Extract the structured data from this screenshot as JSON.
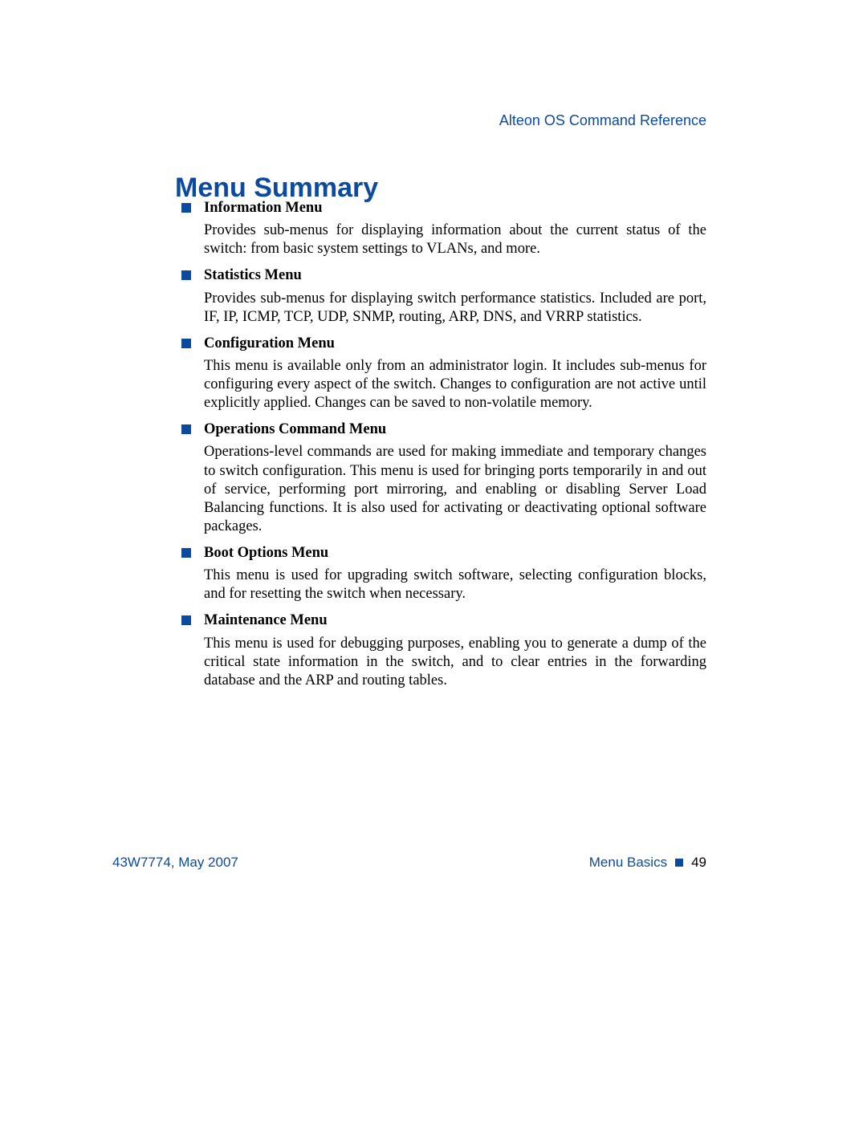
{
  "header": {
    "reference": "Alteon OS  Command Reference"
  },
  "title": "Menu Summary",
  "sections": [
    {
      "heading": "Information Menu",
      "body": "Provides sub-menus for displaying information about the current status of the switch: from basic system settings to VLANs, and more."
    },
    {
      "heading": "Statistics Menu",
      "body": "Provides sub-menus for displaying switch performance statistics. Included are port, IF, IP, ICMP, TCP, UDP, SNMP, routing, ARP, DNS, and VRRP statistics."
    },
    {
      "heading": "Configuration Menu",
      "body": "This menu is available only from an administrator login. It includes sub-menus for configuring every aspect of the switch. Changes to configuration are not active until explicitly applied. Changes can be saved to non-volatile memory."
    },
    {
      "heading": "Operations Command Menu",
      "body": "Operations-level commands are used for making immediate and temporary changes to switch configuration. This menu is used for bringing ports temporarily in and out of service, performing port mirroring, and enabling or disabling Server Load Balancing functions. It is also used for activating or deactivating optional software packages."
    },
    {
      "heading": "Boot Options Menu",
      "body": "This menu is used for upgrading switch software, selecting configuration blocks, and for resetting the switch when necessary."
    },
    {
      "heading": "Maintenance Menu",
      "body": "This menu is used for debugging purposes, enabling you to generate a dump of the critical state information in the switch, and to clear entries in the forwarding database and the ARP and routing tables."
    }
  ],
  "footer": {
    "left": "43W7774, May 2007",
    "section": "Menu Basics",
    "page": "49"
  },
  "colors": {
    "accent": "#0b4a9e",
    "text": "#000000",
    "background": "#ffffff"
  }
}
